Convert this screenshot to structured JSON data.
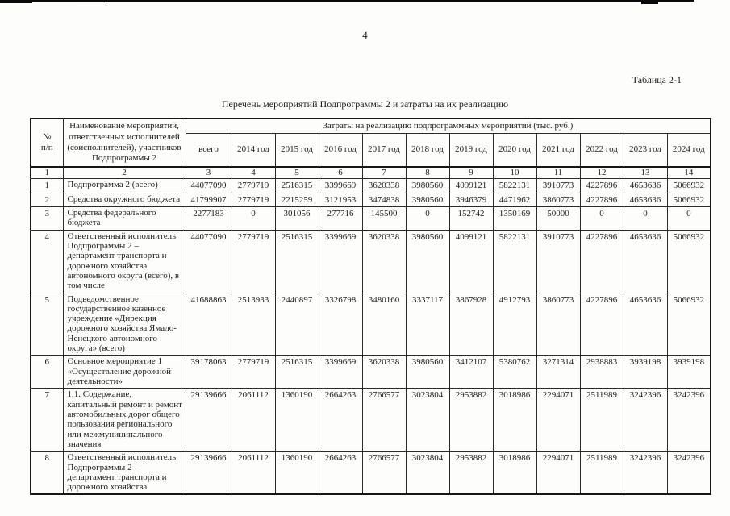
{
  "colors": {
    "ink": "#1d1d1b",
    "paper": "#fdfdfc"
  },
  "page": {
    "number": "4",
    "table_label": "Таблица 2-1",
    "table_title": "Перечень мероприятий Подпрограммы 2 и затраты на их реализацию"
  },
  "table": {
    "header": {
      "col_num": "№\nп/п",
      "col_name": "Наименование мероприятий, ответственных исполнителей (соисполнителей), участников Подпрограммы 2",
      "col_costs": "Затраты на реализацию подпрограммных мероприятий (тыс. руб.)",
      "subcols": [
        "всего",
        "2014 год",
        "2015 год",
        "2016 год",
        "2017 год",
        "2018 год",
        "2019 год",
        "2020 год",
        "2021 год",
        "2022 год",
        "2023 год",
        "2024 год"
      ]
    },
    "numbering_row": [
      "1",
      "2",
      "3",
      "4",
      "5",
      "6",
      "7",
      "8",
      "9",
      "10",
      "11",
      "12",
      "13",
      "14"
    ],
    "rows": [
      {
        "num": "1",
        "name": "Подпрограмма 2 (всего)",
        "values": [
          "44077090",
          "2779719",
          "2516315",
          "3399669",
          "3620338",
          "3980560",
          "4099121",
          "5822131",
          "3910773",
          "4227896",
          "4653636",
          "5066932"
        ]
      },
      {
        "num": "2",
        "name": "Средства окружного бюджета",
        "values": [
          "41799907",
          "2779719",
          "2215259",
          "3121953",
          "3474838",
          "3980560",
          "3946379",
          "4471962",
          "3860773",
          "4227896",
          "4653636",
          "5066932"
        ]
      },
      {
        "num": "3",
        "name": "Средства федерального бюджета",
        "values": [
          "2277183",
          "0",
          "301056",
          "277716",
          "145500",
          "0",
          "152742",
          "1350169",
          "50000",
          "0",
          "0",
          "0"
        ]
      },
      {
        "num": "4",
        "name": "Ответственный исполнитель Подпрограммы 2 – департамент транспорта и дорожного хозяйства автономного округа (всего), в том числе",
        "values": [
          "44077090",
          "2779719",
          "2516315",
          "3399669",
          "3620338",
          "3980560",
          "4099121",
          "5822131",
          "3910773",
          "4227896",
          "4653636",
          "5066932"
        ]
      },
      {
        "num": "5",
        "name": "Подведомственное государственное казенное учреждение «Дирекция дорожного хозяйства Ямало-Ненецкого автономного округа» (всего)",
        "values": [
          "41688863",
          "2513933",
          "2440897",
          "3326798",
          "3480160",
          "3337117",
          "3867928",
          "4912793",
          "3860773",
          "4227896",
          "4653636",
          "5066932"
        ]
      },
      {
        "num": "6",
        "name": "Основное мероприятие 1 «Осуществление дорожной деятельности»",
        "values": [
          "39178063",
          "2779719",
          "2516315",
          "3399669",
          "3620338",
          "3980560",
          "3412107",
          "5380762",
          "3271314",
          "2938883",
          "3939198",
          "3939198"
        ]
      },
      {
        "num": "7",
        "name": "1.1. Содержание, капитальный ремонт и ремонт автомобильных дорог общего пользования регионального или межмуниципального значения",
        "values": [
          "29139666",
          "2061112",
          "1360190",
          "2664263",
          "2766577",
          "3023804",
          "2953882",
          "3018986",
          "2294071",
          "2511989",
          "3242396",
          "3242396"
        ]
      },
      {
        "num": "8",
        "name": "Ответственный исполнитель Подпрограммы 2 – департамент транспорта и дорожного хозяйства",
        "values": [
          "29139666",
          "2061112",
          "1360190",
          "2664263",
          "2766577",
          "3023804",
          "2953882",
          "3018986",
          "2294071",
          "2511989",
          "3242396",
          "3242396"
        ]
      }
    ]
  }
}
